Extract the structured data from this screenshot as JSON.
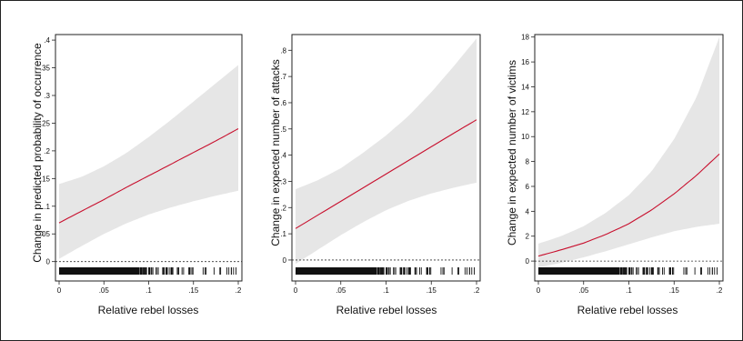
{
  "colors": {
    "line": "#c8102e",
    "band": "#e6e6e6",
    "frame": "#222222",
    "rug": "#111111"
  },
  "chart_data": [
    {
      "type": "line",
      "xlabel": "Relative rebel losses",
      "ylabel": "Change in predicted probability of occurrence",
      "xlim": [
        0,
        0.2
      ],
      "ylim": [
        -0.035,
        0.41
      ],
      "xticks": [
        0,
        0.05,
        0.1,
        0.15,
        0.2
      ],
      "xtick_labels": [
        "0",
        ".05",
        ".1",
        ".15",
        ".2"
      ],
      "yticks": [
        0,
        0.05,
        0.1,
        0.15,
        0.2,
        0.25,
        0.3,
        0.35,
        0.4
      ],
      "ytick_labels": [
        "0",
        ".05",
        ".1",
        ".15",
        ".2",
        ".25",
        ".3",
        ".35",
        ".4"
      ],
      "reference_line_y": 0,
      "x": [
        0,
        0.025,
        0.05,
        0.075,
        0.1,
        0.125,
        0.15,
        0.175,
        0.2
      ],
      "estimate": [
        0.07,
        0.091,
        0.112,
        0.134,
        0.155,
        0.176,
        0.197,
        0.218,
        0.24
      ],
      "ci_lower": [
        0.005,
        0.028,
        0.05,
        0.069,
        0.085,
        0.098,
        0.109,
        0.119,
        0.128
      ],
      "ci_upper": [
        0.14,
        0.153,
        0.172,
        0.196,
        0.225,
        0.256,
        0.289,
        0.322,
        0.355
      ]
    },
    {
      "type": "line",
      "xlabel": "Relative rebel losses",
      "ylabel": "Change in expected number of attacks",
      "xlim": [
        0,
        0.2
      ],
      "ylim": [
        -0.08,
        0.86
      ],
      "xticks": [
        0,
        0.05,
        0.1,
        0.15,
        0.2
      ],
      "xtick_labels": [
        "0",
        ".05",
        ".1",
        ".15",
        ".2"
      ],
      "yticks": [
        0,
        0.1,
        0.2,
        0.3,
        0.4,
        0.5,
        0.6,
        0.7,
        0.8
      ],
      "ytick_labels": [
        "0",
        ".1",
        ".2",
        ".3",
        ".4",
        ".5",
        ".6",
        ".7",
        ".8"
      ],
      "reference_line_y": 0,
      "x": [
        0,
        0.025,
        0.05,
        0.075,
        0.1,
        0.125,
        0.15,
        0.175,
        0.2
      ],
      "estimate": [
        0.12,
        0.172,
        0.224,
        0.276,
        0.328,
        0.38,
        0.432,
        0.484,
        0.535
      ],
      "ci_lower": [
        -0.015,
        0.04,
        0.095,
        0.145,
        0.19,
        0.226,
        0.254,
        0.276,
        0.295
      ],
      "ci_upper": [
        0.27,
        0.305,
        0.35,
        0.41,
        0.475,
        0.55,
        0.64,
        0.74,
        0.845
      ]
    },
    {
      "type": "line",
      "xlabel": "Relative rebel losses",
      "ylabel": "Change in expected number of victims",
      "xlim": [
        0,
        0.2
      ],
      "ylim": [
        -1.6,
        18.2
      ],
      "xticks": [
        0,
        0.05,
        0.1,
        0.15,
        0.2
      ],
      "xtick_labels": [
        "0",
        ".05",
        ".1",
        ".15",
        ".2"
      ],
      "yticks": [
        0,
        2,
        4,
        6,
        8,
        10,
        12,
        14,
        16,
        18
      ],
      "ytick_labels": [
        "0",
        "2",
        "4",
        "6",
        "8",
        "10",
        "12",
        "14",
        "16",
        "18"
      ],
      "reference_line_y": 0,
      "x": [
        0,
        0.025,
        0.05,
        0.075,
        0.1,
        0.125,
        0.15,
        0.175,
        0.2
      ],
      "estimate": [
        0.4,
        0.9,
        1.45,
        2.15,
        3.0,
        4.1,
        5.4,
        6.9,
        8.6
      ],
      "ci_lower": [
        -0.5,
        -0.15,
        0.3,
        0.8,
        1.35,
        1.9,
        2.4,
        2.75,
        3.0
      ],
      "ci_upper": [
        1.4,
        2.0,
        2.8,
        3.9,
        5.3,
        7.2,
        9.8,
        13.2,
        18.0
      ]
    }
  ]
}
